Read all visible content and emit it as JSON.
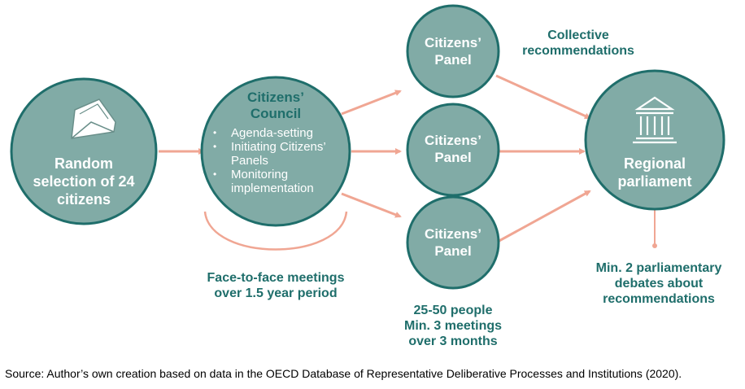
{
  "colors": {
    "teal": "#81aba6",
    "dark_teal": "#1f6e6b",
    "salmon": "#f0a693",
    "text_dark": "#1f6e6b"
  },
  "nodes": {
    "random_selection": {
      "lines": [
        "Random",
        "selection of 24",
        "citizens"
      ],
      "icon": "envelope-icon"
    },
    "council": {
      "title_lines": [
        "Citizens’",
        "Council"
      ],
      "bullets": [
        "Agenda-setting",
        "Initiating Citizens’ Panels",
        "Monitoring implementation"
      ]
    },
    "panel_top": {
      "lines": [
        "Citizens’",
        "Panel"
      ]
    },
    "panel_mid": {
      "lines": [
        "Citizens’",
        "Panel"
      ]
    },
    "panel_bot": {
      "lines": [
        "Citizens’",
        "Panel"
      ]
    },
    "parliament": {
      "lines": [
        "Regional",
        "parliament"
      ],
      "icon": "parliament-building-icon"
    }
  },
  "notes": {
    "collective": [
      "Collective",
      "recommendations"
    ],
    "council_meetings": [
      "Face-to-face meetings",
      "over 1.5 year period"
    ],
    "panel_size": [
      "25-50 people",
      "Min. 3 meetings",
      "over 3 months"
    ],
    "debates": [
      "Min. 2 parliamentary",
      "debates about",
      "recommendations"
    ]
  },
  "source": "Source: Author’s own creation based on data in the OECD Database of Representative Deliberative Processes and Institutions (2020)."
}
